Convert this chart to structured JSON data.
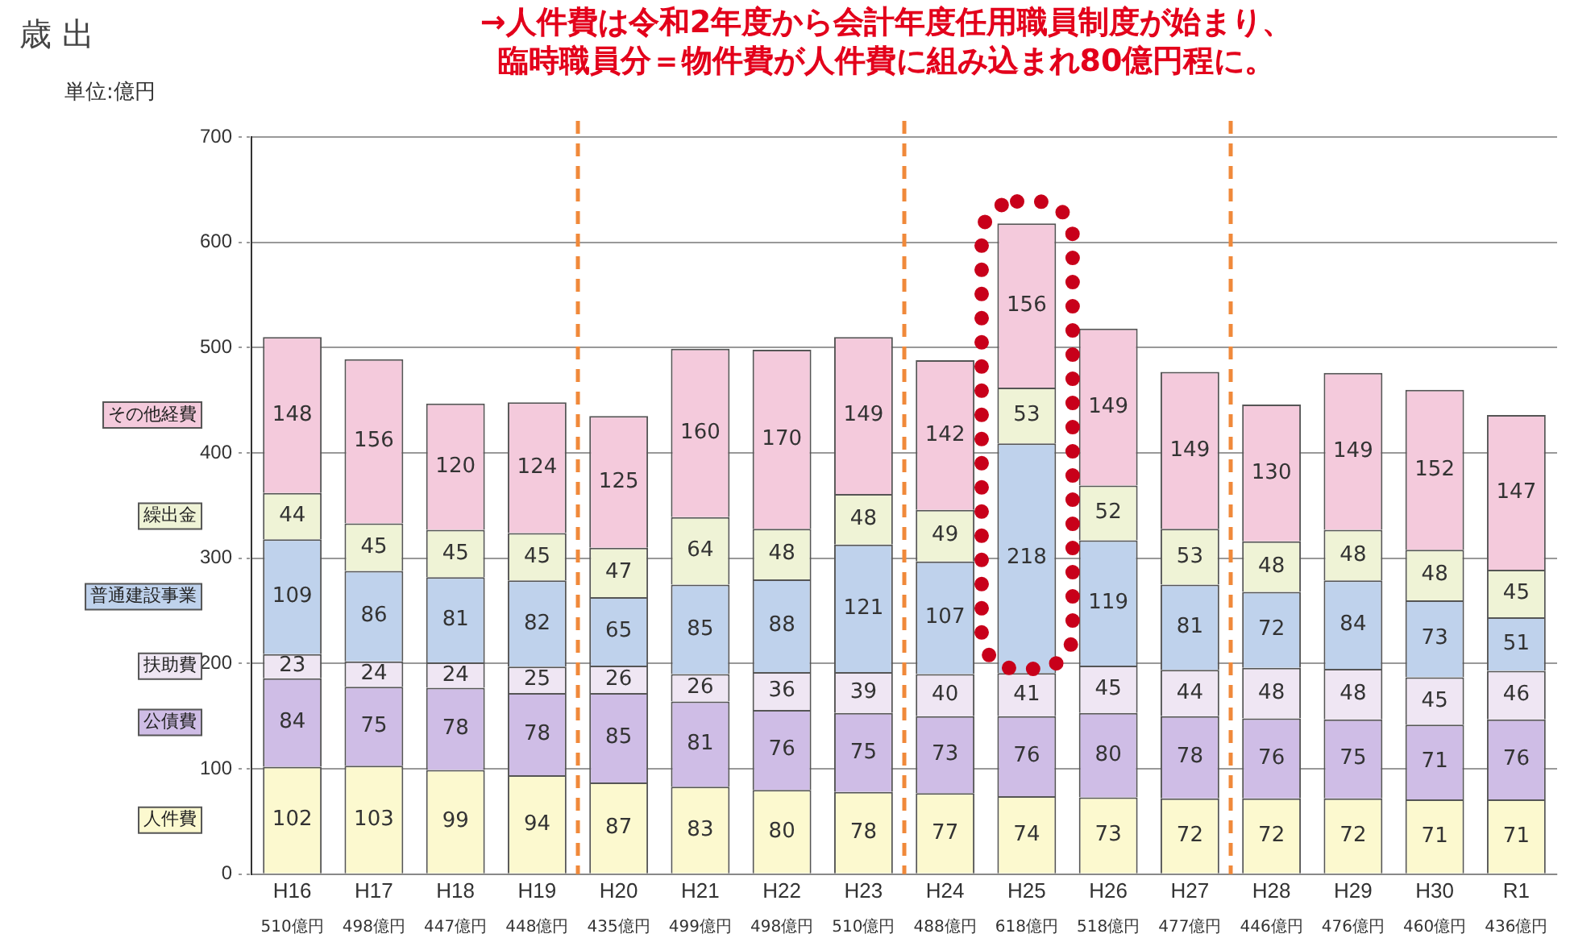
{
  "chart_data": {
    "type": "bar",
    "stacked": true,
    "title": "歳 出",
    "ylabel": "単位:億円",
    "annotations": [
      "→人件費は令和2年度から会計年度任用職員制度が始まり、",
      "臨時職員分＝物件費が人件費に組み込まれ80億円程に。",
      "510億円",
      "498億円",
      "447億円",
      "448億円",
      "435億円",
      "499億円",
      "498億円",
      "510億円",
      "488億円",
      "618億円",
      "518億円",
      "477億円",
      "446億円",
      "476億円",
      "460億円",
      "436億円"
    ],
    "categories": [
      "H16",
      "H17",
      "H18",
      "H19",
      "H20",
      "H21",
      "H22",
      "H23",
      "H24",
      "H25",
      "H26",
      "H27",
      "H28",
      "H29",
      "H30",
      "R1"
    ],
    "series": [
      {
        "name": "人件費",
        "color": "#fcf9cf",
        "values": [
          102,
          103,
          99,
          94,
          87,
          83,
          80,
          78,
          77,
          74,
          73,
          72,
          72,
          72,
          71,
          71
        ]
      },
      {
        "name": "公債費",
        "color": "#cfbde6",
        "values": [
          84,
          75,
          78,
          78,
          85,
          81,
          76,
          75,
          73,
          76,
          80,
          78,
          76,
          75,
          71,
          76
        ]
      },
      {
        "name": "扶助費",
        "color": "#efe6f3",
        "values": [
          23,
          24,
          24,
          25,
          26,
          26,
          36,
          39,
          40,
          41,
          45,
          44,
          48,
          48,
          45,
          46
        ]
      },
      {
        "name": "普通建設事業",
        "color": "#bfd2ec",
        "values": [
          109,
          86,
          81,
          82,
          65,
          85,
          88,
          121,
          107,
          218,
          119,
          81,
          72,
          84,
          73,
          51
        ]
      },
      {
        "name": "繰出金",
        "color": "#eff3d6",
        "values": [
          44,
          45,
          45,
          45,
          47,
          64,
          48,
          48,
          49,
          53,
          52,
          53,
          48,
          48,
          48,
          45
        ]
      },
      {
        "name": "その他経費",
        "color": "#f4cadc",
        "values": [
          148,
          156,
          120,
          124,
          125,
          160,
          170,
          149,
          142,
          156,
          149,
          149,
          130,
          149,
          152,
          147
        ]
      }
    ],
    "data_labels": true,
    "ylim": [
      0,
      700
    ],
    "yticks": [
      0,
      100,
      200,
      300,
      400,
      500,
      600,
      700
    ],
    "grid": "y",
    "legend": false
  }
}
